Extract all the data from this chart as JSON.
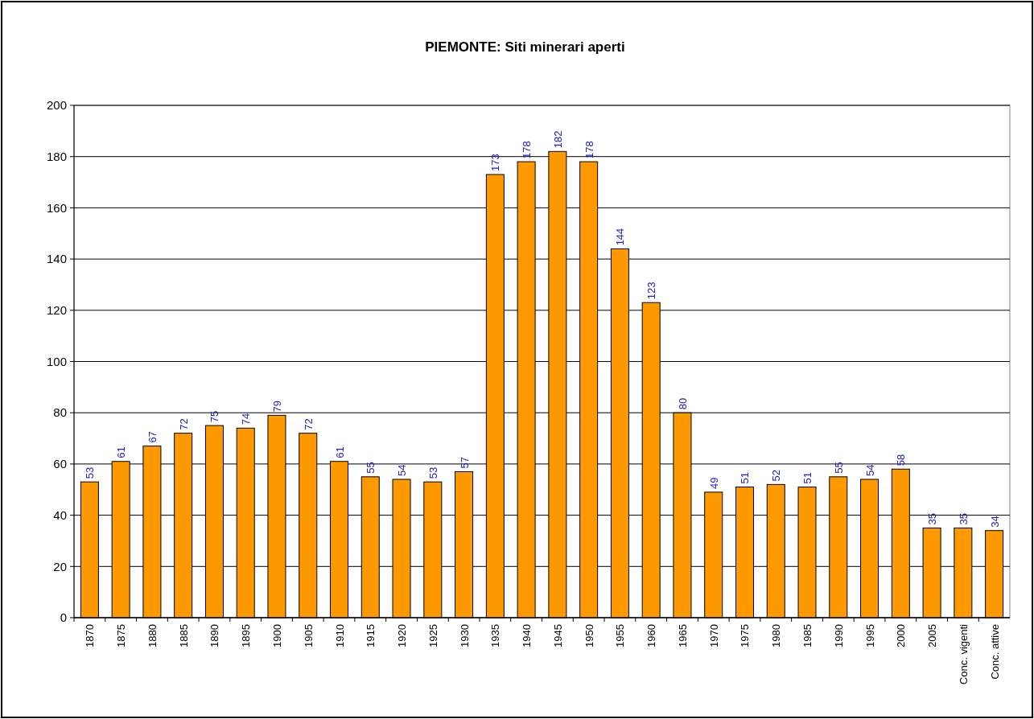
{
  "chart_data": {
    "type": "bar",
    "title": "PIEMONTE: Siti minerari aperti",
    "categories": [
      "1870",
      "1875",
      "1880",
      "1885",
      "1890",
      "1895",
      "1900",
      "1905",
      "1910",
      "1915",
      "1920",
      "1925",
      "1930",
      "1935",
      "1940",
      "1945",
      "1950",
      "1955",
      "1960",
      "1965",
      "1970",
      "1975",
      "1980",
      "1985",
      "1990",
      "1995",
      "2000",
      "2005",
      "Conc. vigenti",
      "Conc. attive"
    ],
    "values": [
      53,
      61,
      67,
      72,
      75,
      74,
      79,
      72,
      61,
      55,
      54,
      53,
      57,
      173,
      178,
      182,
      178,
      144,
      123,
      80,
      49,
      51,
      52,
      51,
      55,
      54,
      58,
      35,
      35,
      34
    ],
    "color": "#ff9900",
    "ylim": [
      0,
      200
    ],
    "yticks": [
      0,
      20,
      40,
      60,
      80,
      100,
      120,
      140,
      160,
      180,
      200
    ],
    "grid": "y",
    "data_labels": true
  }
}
